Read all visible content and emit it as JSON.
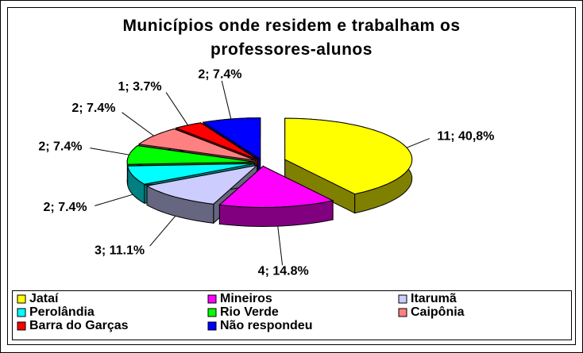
{
  "chart_data": {
    "type": "pie",
    "title": "Municípios onde residem e trabalham os professores-alunos",
    "categories": [
      "Jataí",
      "Mineiros",
      "Itarumã",
      "Perolândia",
      "Rio Verde",
      "Caipônia",
      "Barra do Garças",
      "Não respondeu"
    ],
    "values": [
      11,
      4,
      3,
      2,
      2,
      2,
      1,
      2
    ],
    "value_labels": [
      "11; 40,8%",
      "4; 14.8%",
      "3; 11.1%",
      "2; 7.4%",
      "2; 7.4%",
      "2; 7.4%",
      "1; 3.7%",
      "2; 7.4%"
    ],
    "colors": [
      "#ffff00",
      "#ff00ff",
      "#ccccff",
      "#00ffff",
      "#00ff00",
      "#ff8080",
      "#ff0000",
      "#0000ff"
    ],
    "legend": "bottom"
  }
}
